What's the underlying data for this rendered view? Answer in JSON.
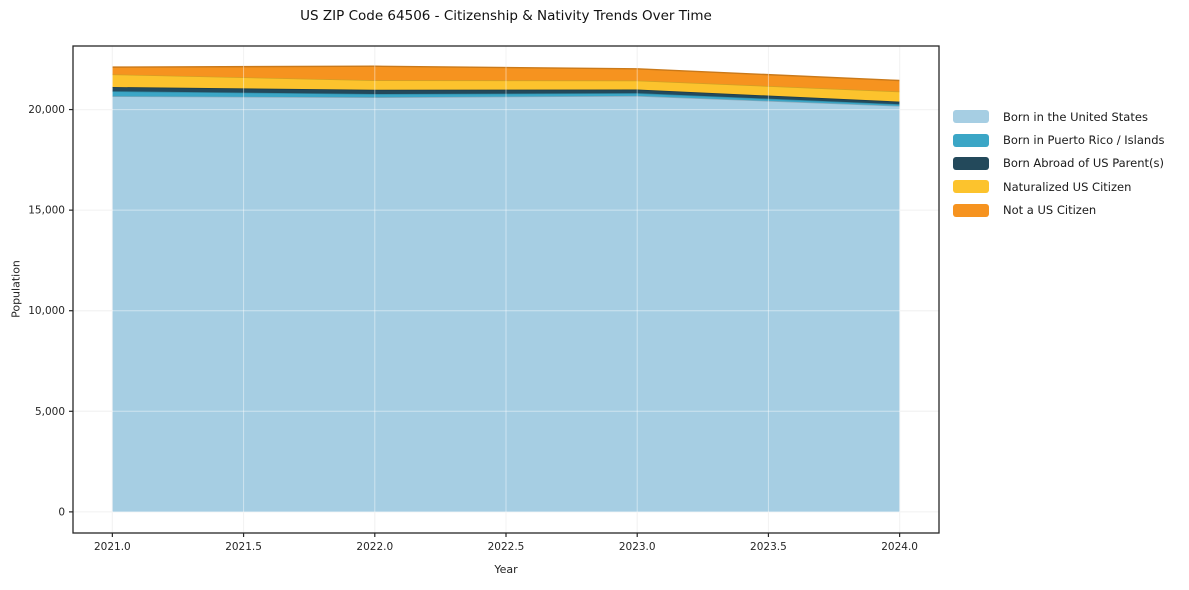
{
  "title": "US ZIP Code 64506 - Citizenship & Nativity Trends Over Time",
  "axes": {
    "xlabel": "Year",
    "ylabel": "Population",
    "x_ticks": [
      "2021.0",
      "2021.5",
      "2022.0",
      "2022.5",
      "2023.0",
      "2023.5",
      "2024.0"
    ],
    "y_ticks": [
      "0",
      "5,000",
      "10,000",
      "15,000",
      "20,000"
    ]
  },
  "legend": {
    "position": "right-outside",
    "items": [
      {
        "label": "Born in the United States",
        "color": "#a6cee3"
      },
      {
        "label": "Born in Puerto Rico / Islands",
        "color": "#3ba6c6"
      },
      {
        "label": "Born Abroad of US Parent(s)",
        "color": "#23495b"
      },
      {
        "label": "Naturalized US Citizen",
        "color": "#fcc32d"
      },
      {
        "label": "Not a US Citizen",
        "color": "#f6931f"
      }
    ]
  },
  "chart_data": {
    "type": "area",
    "stacked": true,
    "title": "US ZIP Code 64506 - Citizenship & Nativity Trends Over Time",
    "xlabel": "Year",
    "ylabel": "Population",
    "x": [
      2021,
      2022,
      2023,
      2024
    ],
    "series": [
      {
        "name": "Born in the United States",
        "color": "#a6cee3",
        "values": [
          20660,
          20610,
          20680,
          20180
        ]
      },
      {
        "name": "Born in Puerto Rico / Islands",
        "color": "#3ba6c6",
        "values": [
          250,
          165,
          135,
          85
        ]
      },
      {
        "name": "Born Abroad of US Parent(s)",
        "color": "#23495b",
        "values": [
          210,
          210,
          180,
          130
        ]
      },
      {
        "name": "Naturalized US Citizen",
        "color": "#fcc32d",
        "values": [
          630,
          470,
          450,
          500
        ]
      },
      {
        "name": "Not a US Citizen",
        "color": "#f6931f",
        "values": [
          360,
          700,
          580,
          550
        ]
      }
    ],
    "totals": [
      22110,
      22155,
      22025,
      21445
    ],
    "xlim": [
      2020.85,
      2024.15
    ],
    "ylim": [
      -1050,
      23160
    ],
    "grid": true,
    "legend_position": "right"
  }
}
